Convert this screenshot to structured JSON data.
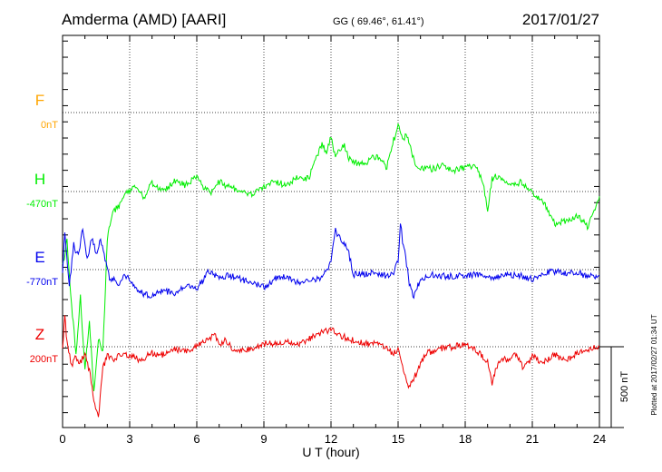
{
  "header": {
    "station": "Amderma (AMD)  [AARI]",
    "coords": "GG ( 69.46°,  61.41°)",
    "date": "2017/01/27"
  },
  "side_note": "Plotted at 2017/02/27 01:34 UT",
  "scale_bar_label": "500 nT",
  "chart_data": {
    "type": "line",
    "xlabel": "U T (hour)",
    "xlim": [
      0,
      24
    ],
    "x_ticks": [
      0,
      3,
      6,
      9,
      12,
      15,
      18,
      21,
      24
    ],
    "grid": true,
    "scale_nT_for_bar": 500,
    "series": [
      {
        "name": "F",
        "baseline_label": "0nT",
        "color": "#FFA500",
        "x": [],
        "y": []
      },
      {
        "name": "H",
        "baseline_label": "-470nT",
        "color": "#00EE00",
        "x": [
          0,
          0.2,
          0.4,
          0.6,
          0.8,
          1.0,
          1.2,
          1.4,
          1.6,
          1.8,
          2.0,
          2.2,
          2.4,
          2.6,
          2.8,
          3.0,
          3.3,
          3.6,
          4.0,
          4.5,
          5.0,
          5.5,
          6.0,
          6.3,
          6.6,
          7.0,
          7.5,
          8.0,
          8.5,
          9.0,
          9.5,
          10.0,
          10.5,
          11.0,
          11.3,
          11.6,
          11.8,
          12.0,
          12.2,
          12.4,
          12.6,
          12.8,
          13.0,
          13.5,
          14.0,
          14.5,
          14.8,
          15.0,
          15.2,
          15.4,
          15.6,
          15.8,
          16.0,
          16.5,
          17.0,
          17.5,
          18.0,
          18.5,
          18.8,
          19.0,
          19.2,
          19.5,
          20.0,
          20.5,
          21.0,
          21.5,
          22.0,
          22.5,
          23.0,
          23.5,
          24.0
        ],
        "y": [
          -470,
          -300,
          -700,
          -1000,
          -650,
          -1100,
          -800,
          -1250,
          -900,
          -1000,
          -300,
          -150,
          -100,
          -80,
          -20,
          0,
          30,
          -40,
          50,
          10,
          60,
          40,
          90,
          30,
          -10,
          60,
          20,
          10,
          -20,
          30,
          60,
          40,
          90,
          80,
          190,
          300,
          220,
          350,
          200,
          270,
          280,
          200,
          180,
          170,
          220,
          150,
          320,
          400,
          330,
          350,
          250,
          160,
          150,
          140,
          160,
          130,
          150,
          160,
          50,
          -120,
          80,
          100,
          30,
          60,
          -10,
          -60,
          -200,
          -180,
          -150,
          -220,
          -30
        ],
        "note": "offset in nT from -470nT baseline"
      },
      {
        "name": "E",
        "baseline_label": "-770nT",
        "color": "#0000EE",
        "x": [
          0,
          0.1,
          0.3,
          0.5,
          0.7,
          0.9,
          1.1,
          1.3,
          1.5,
          1.7,
          1.9,
          2.1,
          2.3,
          2.5,
          2.8,
          3.0,
          3.5,
          4.0,
          4.5,
          5.0,
          5.5,
          6.0,
          6.5,
          7.0,
          7.5,
          8.0,
          8.5,
          9.0,
          9.5,
          10.0,
          10.5,
          11.0,
          11.5,
          11.8,
          12.0,
          12.2,
          12.5,
          12.8,
          13.0,
          13.5,
          14.0,
          14.5,
          14.8,
          15.0,
          15.1,
          15.2,
          15.3,
          15.5,
          15.7,
          16.0,
          16.5,
          17.0,
          17.5,
          18.0,
          18.5,
          19.0,
          19.5,
          20.0,
          20.5,
          21.0,
          21.5,
          22.0,
          22.5,
          23.0,
          23.5,
          24.0
        ],
        "y": [
          -20,
          240,
          -100,
          150,
          80,
          250,
          60,
          200,
          100,
          180,
          60,
          -50,
          -60,
          -110,
          -30,
          -60,
          -140,
          -170,
          -120,
          -160,
          -100,
          -120,
          -20,
          -40,
          -40,
          -60,
          -80,
          -110,
          -60,
          -40,
          -80,
          -60,
          -60,
          -10,
          60,
          240,
          180,
          100,
          -30,
          -30,
          -20,
          -40,
          -20,
          50,
          290,
          180,
          100,
          -80,
          -170,
          -60,
          -30,
          -40,
          -40,
          -40,
          -30,
          -60,
          -40,
          -30,
          -40,
          -60,
          -20,
          -10,
          -20,
          -20,
          -40,
          -40
        ],
        "note": "offset in nT from -770nT baseline"
      },
      {
        "name": "Z",
        "baseline_label": "200nT",
        "color": "#EE0000",
        "x": [
          0,
          0.1,
          0.2,
          0.4,
          0.6,
          0.8,
          1.0,
          1.2,
          1.4,
          1.6,
          1.8,
          2.0,
          2.3,
          2.6,
          3.0,
          3.5,
          4.0,
          4.5,
          5.0,
          5.5,
          6.0,
          6.5,
          6.8,
          7.0,
          7.3,
          7.6,
          8.0,
          8.5,
          9.0,
          9.5,
          10.0,
          10.5,
          11.0,
          11.5,
          12.0,
          12.3,
          12.6,
          13.0,
          13.5,
          14.0,
          14.5,
          14.8,
          15.0,
          15.2,
          15.5,
          15.8,
          16.0,
          16.3,
          16.6,
          17.0,
          17.5,
          18.0,
          18.5,
          18.8,
          19.0,
          19.2,
          19.5,
          20.0,
          20.3,
          20.6,
          21.0,
          21.5,
          22.0,
          22.5,
          23.0,
          23.3,
          23.6,
          24.0
        ],
        "y": [
          -20,
          200,
          20,
          -120,
          -60,
          -100,
          -40,
          -150,
          -330,
          -450,
          -130,
          -60,
          -80,
          -40,
          -60,
          -80,
          -40,
          -50,
          -20,
          -30,
          0,
          40,
          80,
          20,
          40,
          -10,
          -20,
          -20,
          20,
          20,
          30,
          10,
          50,
          80,
          110,
          80,
          60,
          40,
          20,
          30,
          -10,
          -40,
          -10,
          -130,
          -250,
          -170,
          -100,
          -40,
          -20,
          -10,
          0,
          20,
          -20,
          -60,
          -100,
          -220,
          -80,
          -80,
          -40,
          -140,
          -60,
          -100,
          -50,
          -90,
          -40,
          -30,
          -10,
          0
        ],
        "note": "offset in nT from 200nT baseline"
      }
    ]
  }
}
